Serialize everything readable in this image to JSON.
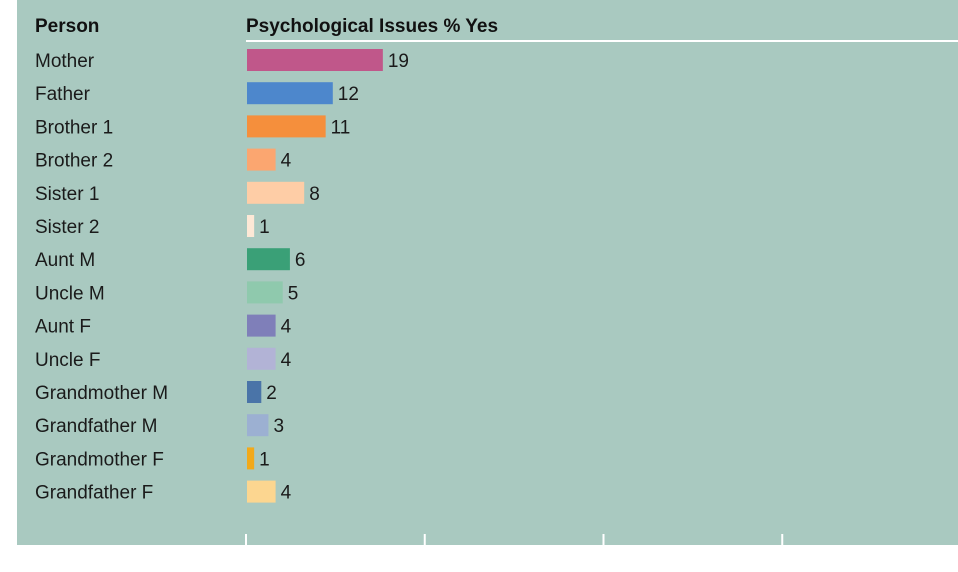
{
  "chart_data": {
    "type": "bar",
    "orientation": "horizontal",
    "category_header": "Person",
    "value_header": "Psychological Issues % Yes",
    "categories": [
      "Mother",
      "Father",
      "Brother 1",
      "Brother 2",
      "Sister 1",
      "Sister 2",
      "Aunt M",
      "Uncle M",
      "Aunt F",
      "Uncle F",
      "Grandmother M",
      "Grandfather M",
      "Grandmother F",
      "Grandfather F"
    ],
    "values": [
      19,
      12,
      11,
      4,
      8,
      1,
      6,
      5,
      4,
      4,
      2,
      3,
      1,
      4
    ],
    "colors": [
      "#c0578a",
      "#4d87cc",
      "#f58f3c",
      "#fba670",
      "#fecda6",
      "#fde8d6",
      "#3aa077",
      "#8fc9ad",
      "#7f7fb9",
      "#b2b3d6",
      "#4a74a8",
      "#9cb0d2",
      "#f2a91a",
      "#fcd690"
    ],
    "xlim": [
      0,
      100
    ],
    "ticks": [
      "0",
      "25",
      "50",
      "75",
      "100"
    ],
    "grid": false,
    "background": "#a9c9c0",
    "axis_color": "#ffffff"
  }
}
